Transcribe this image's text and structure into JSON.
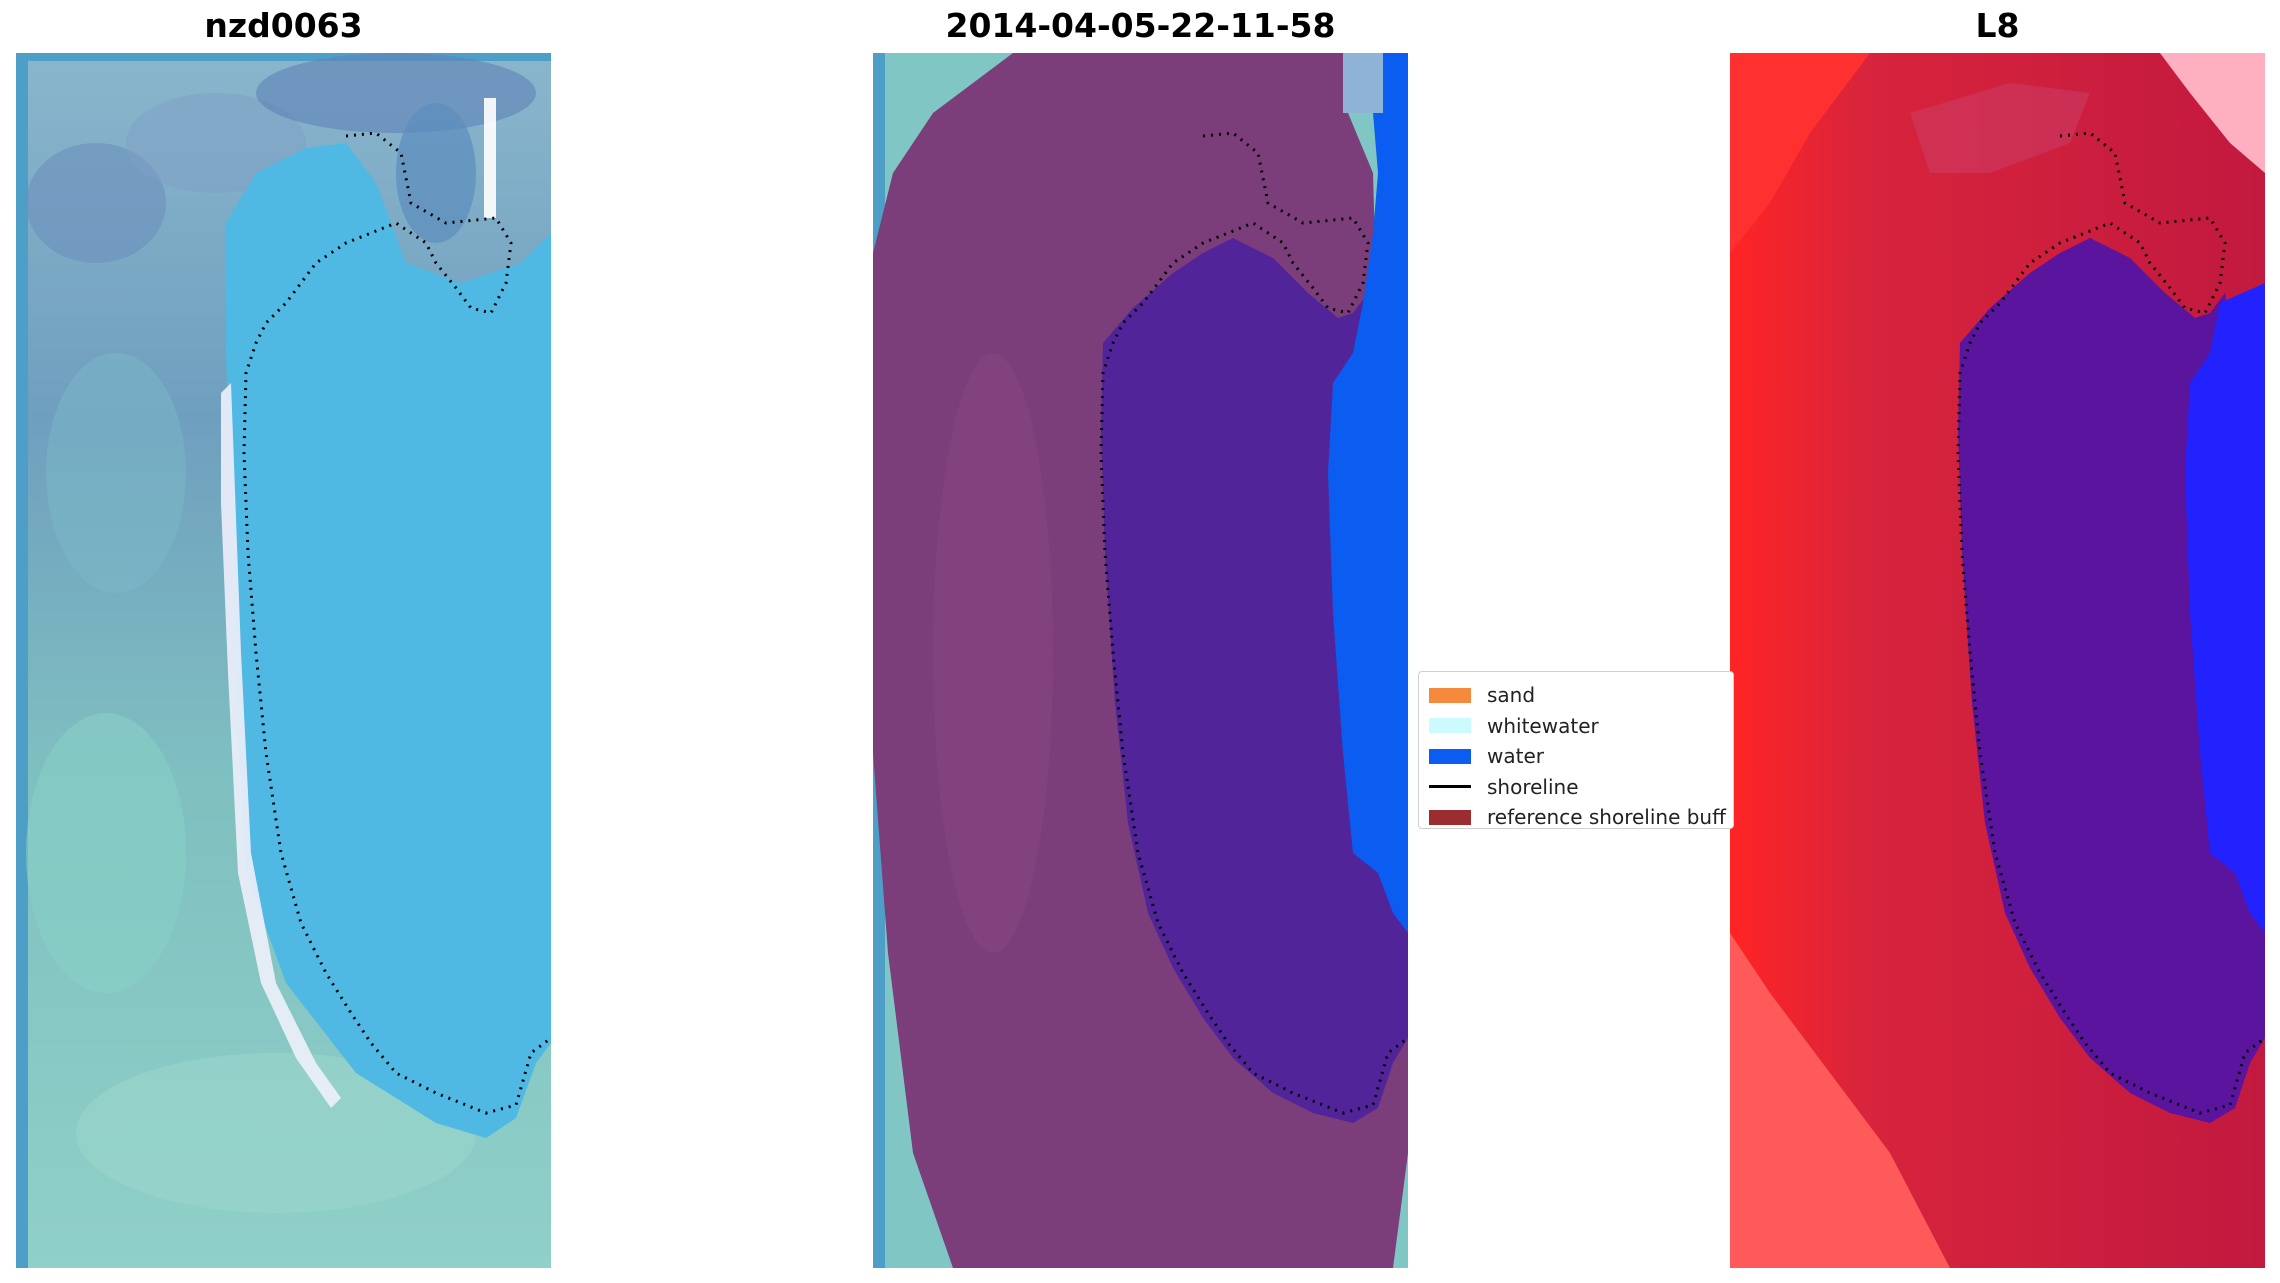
{
  "panels": {
    "left": {
      "title": "nzd0063"
    },
    "middle": {
      "title": "2014-04-05-22-11-58"
    },
    "right": {
      "title": "L8"
    }
  },
  "legend": {
    "items": [
      {
        "label": "sand",
        "color": "#f58a3f",
        "kind": "patch"
      },
      {
        "label": "whitewater",
        "color": "#ccfbff",
        "kind": "patch"
      },
      {
        "label": "water",
        "color": "#0b5cf0",
        "kind": "patch"
      },
      {
        "label": "shoreline",
        "color": "#000000",
        "kind": "line"
      },
      {
        "label": "reference shoreline buff",
        "color": "#9b2d30",
        "kind": "patch"
      }
    ]
  },
  "colors": {
    "rgb_water": "#4bb5e0",
    "rgb_land": "#7fc6c4",
    "classified_buffer": "#7b3e7a",
    "classified_lagoon": "#52249a",
    "classified_water": "#0b5cf0",
    "index_land": "#c2193f",
    "index_edge": "#ff2a2a",
    "index_lagoon": "#5a149e",
    "index_water": "#2222ff"
  }
}
